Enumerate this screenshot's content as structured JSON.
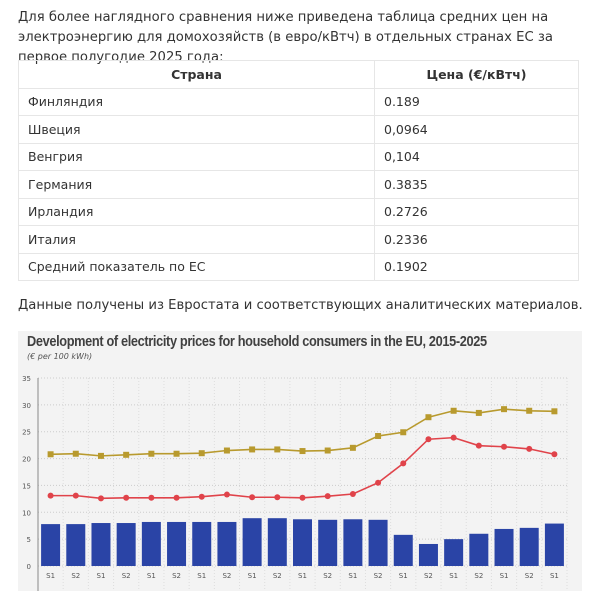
{
  "intro": "Для более наглядного сравнения ниже приведена таблица средних цен на электроэнергию для домохозяйств (в евро/кВтч) в отдельных странах ЕС за первое полугодие 2025 года:",
  "table": {
    "headers": [
      "Страна",
      "Цена (€/кВтч)"
    ],
    "rows": [
      [
        "Финляндия",
        "0.189"
      ],
      [
        "Швеция",
        "0,0964"
      ],
      [
        "Венгрия",
        "0,104"
      ],
      [
        "Германия",
        "0.3835"
      ],
      [
        "Ирландия",
        "0.2726"
      ],
      [
        "Италия",
        "0.2336"
      ],
      [
        "Средний показатель по ЕС",
        "0.1902"
      ]
    ]
  },
  "source": "Данные получены из Евростата и соответствующих аналитических материалов.",
  "chart_data": {
    "type": "bar+line",
    "title": "Development of electricity prices for household consumers in the EU, 2015-2025",
    "subtitle": "(€ per 100 kWh)",
    "ylim": [
      0,
      35
    ],
    "yticks": [
      0,
      5,
      10,
      15,
      20,
      25,
      30,
      35
    ],
    "categories": [
      "S1",
      "S2",
      "S1",
      "S2",
      "S1",
      "S2",
      "S1",
      "S2",
      "S1",
      "S2",
      "S1",
      "S2",
      "S1",
      "S2",
      "S1",
      "S2",
      "S1",
      "S2",
      "S1",
      "S2",
      "S1"
    ],
    "series": [
      {
        "name": "bars",
        "type": "bar",
        "color": "#2a44a6",
        "values": [
          7.8,
          7.8,
          8.0,
          8.0,
          8.2,
          8.2,
          8.2,
          8.2,
          8.9,
          8.9,
          8.7,
          8.6,
          8.7,
          8.6,
          5.8,
          4.1,
          5.0,
          6.0,
          6.9,
          7.1,
          7.9
        ]
      },
      {
        "name": "upper line",
        "type": "line",
        "marker": "square",
        "color": "#b89a2e",
        "values": [
          20.8,
          20.9,
          20.5,
          20.7,
          20.9,
          20.9,
          21.0,
          21.5,
          21.7,
          21.7,
          21.4,
          21.5,
          22.0,
          24.2,
          24.9,
          27.7,
          28.9,
          28.5,
          29.2,
          28.9,
          28.8
        ]
      },
      {
        "name": "middle line",
        "type": "line",
        "marker": "circle",
        "color": "#e0434a",
        "values": [
          13.1,
          13.1,
          12.6,
          12.7,
          12.7,
          12.7,
          12.9,
          13.3,
          12.8,
          12.8,
          12.7,
          13.0,
          13.4,
          15.5,
          19.1,
          23.6,
          23.9,
          22.4,
          22.2,
          21.8,
          20.8
        ]
      }
    ]
  }
}
